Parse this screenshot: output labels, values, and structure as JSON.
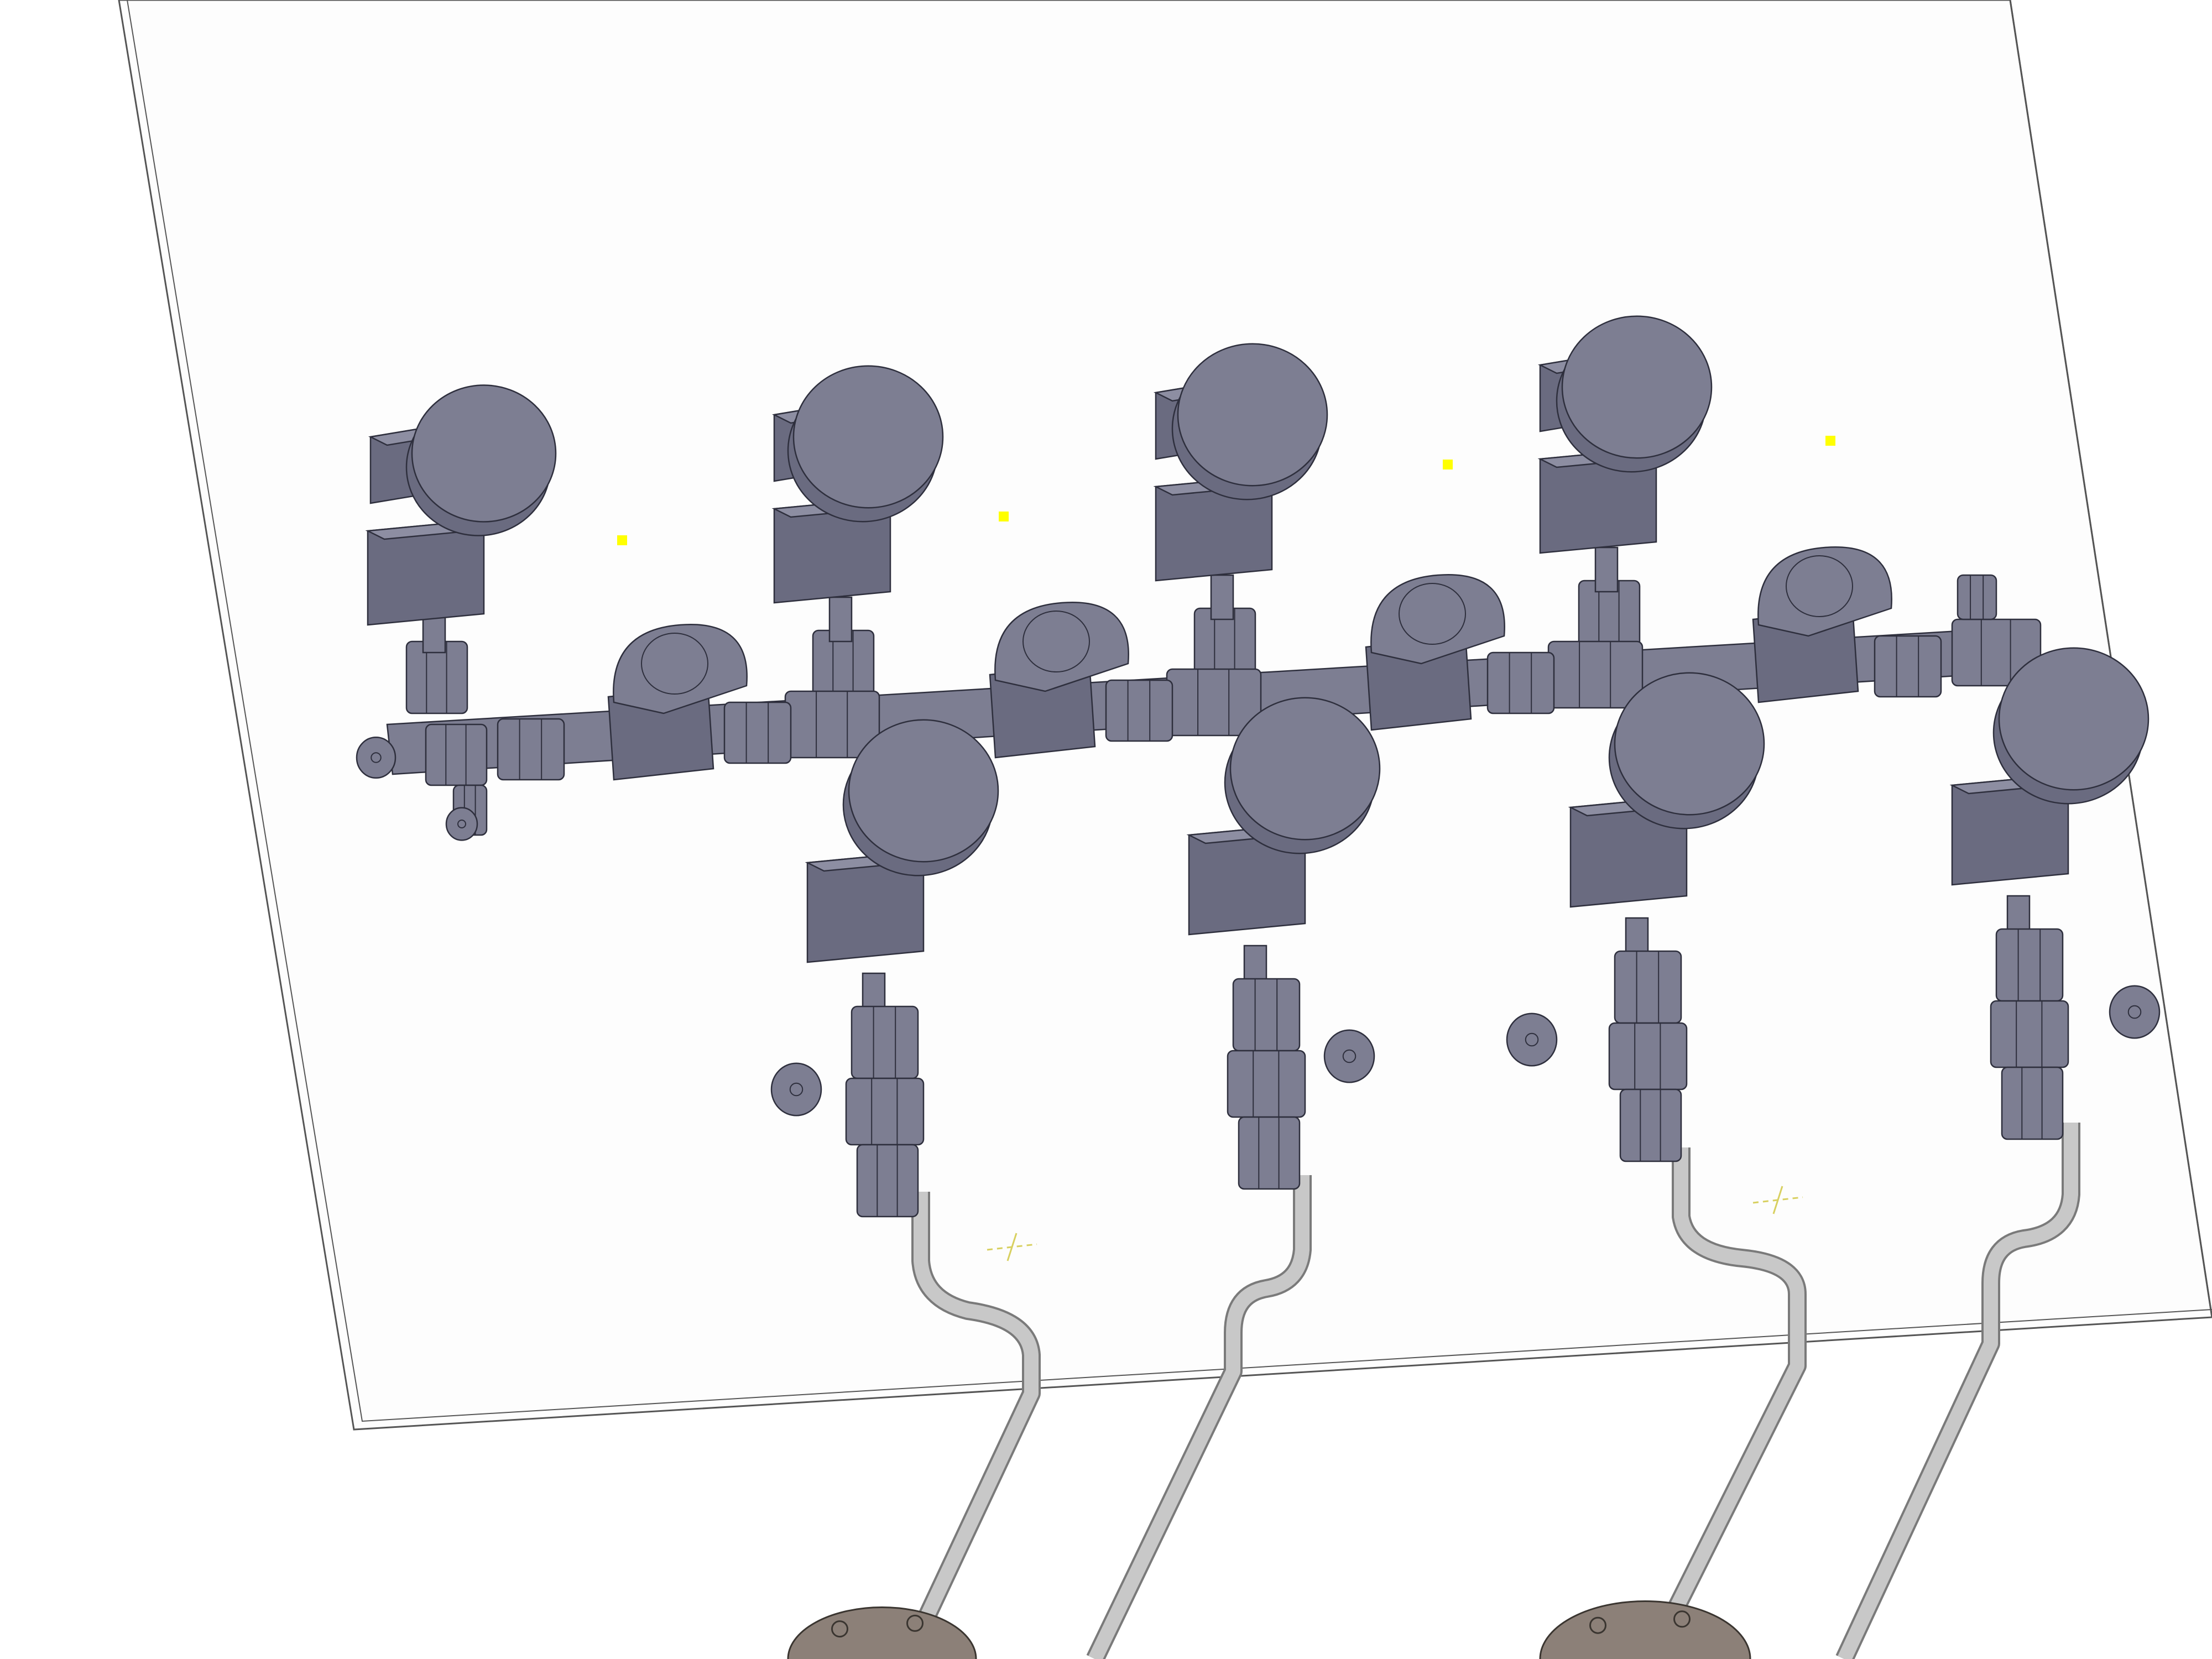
{
  "scene": {
    "kind": "cad-3d-model-view",
    "text": [],
    "colors": {
      "background": "#ffffff",
      "panel_edge": "#555555",
      "component_fill": "#7d7e92",
      "component_dark": "#6a6b80",
      "component_light": "#8d8ea2",
      "outline": "#2e2f3d",
      "tube": "#c8c8c8",
      "tube_outline": "#7a7a7a",
      "flange": "#8c8078",
      "marker": "#ffff00",
      "axis_marker": "#d8d060"
    },
    "parts": {
      "handwheels": 8,
      "ball_valves": 4,
      "cross_fittings": 3,
      "tee_fittings": 5,
      "bent_tubes": 4,
      "flanges": 2,
      "point_markers": 4,
      "axis_markers": 2
    }
  }
}
